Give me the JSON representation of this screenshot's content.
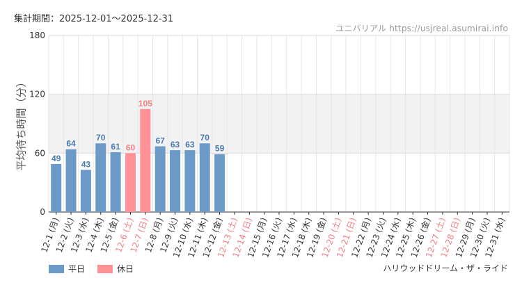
{
  "header": {
    "period": "集計期間：2025-12-01～2025-12-31",
    "site": "ユニバリアル  https://usjreal.asumirai.info"
  },
  "footer": {
    "ride_name": "ハリウッドドリーム・ザ・ライド"
  },
  "colors": {
    "weekday": "#6b9ac8",
    "holiday": "#ff9095",
    "weekday_label": "#4a7bb0",
    "holiday_label": "#f07f86",
    "band": "#f2f2f2",
    "grid": "#e6e6e6",
    "axis": "#333333"
  },
  "chart_data": {
    "type": "bar",
    "ylabel": "平均待ち時間（分）",
    "ylim": [
      0,
      180
    ],
    "yticks": [
      0,
      60,
      120,
      180
    ],
    "shaded_band": [
      60,
      120
    ],
    "legend": [
      {
        "key": "weekday",
        "label": "平日"
      },
      {
        "key": "holiday",
        "label": "休日"
      }
    ],
    "categories": [
      "12-1 (月)",
      "12-2 (火)",
      "12-3 (水)",
      "12-4 (木)",
      "12-5 (金)",
      "12-6 (土)",
      "12-7 (日)",
      "12-8 (月)",
      "12-9 (火)",
      "12-10 (水)",
      "12-11 (木)",
      "12-12 (金)",
      "12-13 (土)",
      "12-14 (日)",
      "12-15 (月)",
      "12-16 (火)",
      "12-17 (水)",
      "12-18 (木)",
      "12-19 (金)",
      "12-20 (土)",
      "12-21 (日)",
      "12-22 (月)",
      "12-23 (火)",
      "12-24 (水)",
      "12-25 (木)",
      "12-26 (金)",
      "12-27 (土)",
      "12-28 (日)",
      "12-29 (月)",
      "12-30 (火)",
      "12-31 (水)"
    ],
    "day_type": [
      "weekday",
      "weekday",
      "weekday",
      "weekday",
      "weekday",
      "holiday",
      "holiday",
      "weekday",
      "weekday",
      "weekday",
      "weekday",
      "weekday",
      "holiday",
      "holiday",
      "weekday",
      "weekday",
      "weekday",
      "weekday",
      "weekday",
      "holiday",
      "holiday",
      "weekday",
      "weekday",
      "weekday",
      "weekday",
      "weekday",
      "holiday",
      "holiday",
      "weekday",
      "weekday",
      "weekday"
    ],
    "values": [
      49,
      64,
      43,
      70,
      61,
      60,
      105,
      67,
      63,
      63,
      70,
      59,
      null,
      null,
      null,
      null,
      null,
      null,
      null,
      null,
      null,
      null,
      null,
      null,
      null,
      null,
      null,
      null,
      null,
      null,
      null
    ]
  }
}
